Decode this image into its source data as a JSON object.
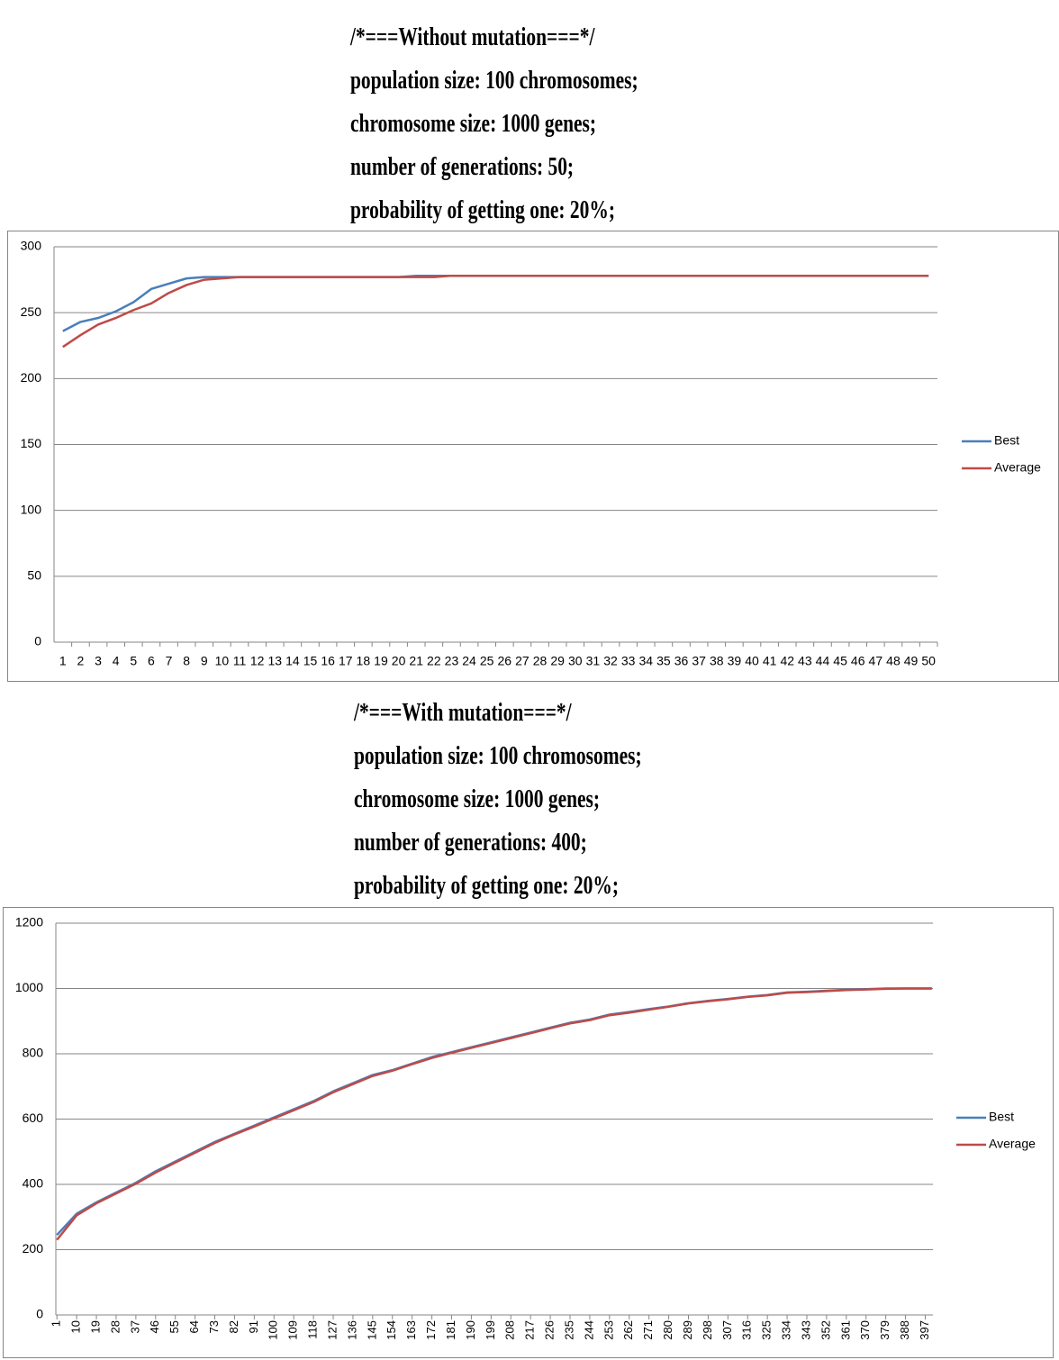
{
  "chart_data": [
    {
      "type": "line",
      "title": "/*===Without mutation===*/",
      "subtitle_lines": [
        "population size: 100 chromosomes;",
        "chromosome size: 1000 genes;",
        "number of generations: 50;",
        "probability of getting one: 20%;"
      ],
      "categories": [
        "1",
        "2",
        "3",
        "4",
        "5",
        "6",
        "7",
        "8",
        "9",
        "10",
        "11",
        "12",
        "13",
        "14",
        "15",
        "16",
        "17",
        "18",
        "19",
        "20",
        "21",
        "22",
        "23",
        "24",
        "25",
        "26",
        "27",
        "28",
        "29",
        "30",
        "31",
        "32",
        "33",
        "34",
        "35",
        "36",
        "37",
        "38",
        "39",
        "40",
        "41",
        "42",
        "43",
        "44",
        "45",
        "46",
        "47",
        "48",
        "49",
        "50"
      ],
      "series": [
        {
          "name": "Best",
          "color": "#4a7ebb",
          "values": [
            236,
            243,
            246,
            251,
            258,
            268,
            272,
            276,
            277,
            277,
            277,
            277,
            277,
            277,
            277,
            277,
            277,
            277,
            277,
            277,
            278,
            278,
            278,
            278,
            278,
            278,
            278,
            278,
            278,
            278,
            278,
            278,
            278,
            278,
            278,
            278,
            278,
            278,
            278,
            278,
            278,
            278,
            278,
            278,
            278,
            278,
            278,
            278,
            278,
            278
          ]
        },
        {
          "name": "Average",
          "color": "#be4b48",
          "values": [
            224,
            233,
            241,
            246,
            252,
            257,
            265,
            271,
            275,
            276,
            277,
            277,
            277,
            277,
            277,
            277,
            277,
            277,
            277,
            277,
            277,
            277,
            278,
            278,
            278,
            278,
            278,
            278,
            278,
            278,
            278,
            278,
            278,
            278,
            278,
            278,
            278,
            278,
            278,
            278,
            278,
            278,
            278,
            278,
            278,
            278,
            278,
            278,
            278,
            278
          ]
        }
      ],
      "ylim": [
        0,
        300
      ],
      "yticks": [
        0,
        50,
        100,
        150,
        200,
        250,
        300
      ],
      "grid": true,
      "legend": "right"
    },
    {
      "type": "line",
      "title": "/*===With mutation===*/",
      "subtitle_lines": [
        "population size: 100 chromosomes;",
        "chromosome size: 1000 genes;",
        "number of generations: 400;",
        "probability of getting one: 20%;"
      ],
      "x": [
        1,
        10,
        19,
        28,
        37,
        46,
        55,
        64,
        73,
        82,
        91,
        100,
        109,
        118,
        127,
        136,
        145,
        154,
        163,
        172,
        181,
        190,
        199,
        208,
        217,
        226,
        235,
        244,
        253,
        262,
        271,
        280,
        289,
        298,
        307,
        316,
        325,
        334,
        343,
        352,
        361,
        370,
        379,
        388,
        397,
        400
      ],
      "series": [
        {
          "name": "Best",
          "color": "#4a7ebb",
          "values": [
            245,
            310,
            345,
            375,
            405,
            440,
            470,
            500,
            530,
            555,
            580,
            605,
            630,
            655,
            685,
            710,
            735,
            750,
            770,
            790,
            805,
            820,
            835,
            850,
            865,
            880,
            895,
            905,
            920,
            928,
            937,
            945,
            955,
            962,
            968,
            975,
            980,
            988,
            990,
            993,
            996,
            998,
            1000,
            1000,
            1000,
            1000
          ]
        },
        {
          "name": "Average",
          "color": "#be4b48",
          "values": [
            230,
            305,
            342,
            372,
            402,
            436,
            467,
            497,
            527,
            553,
            577,
            602,
            627,
            652,
            682,
            707,
            732,
            748,
            768,
            787,
            803,
            818,
            833,
            848,
            863,
            878,
            893,
            903,
            918,
            926,
            935,
            944,
            954,
            961,
            967,
            974,
            979,
            987,
            989,
            992,
            995,
            997,
            999,
            1000,
            1000,
            1000
          ]
        }
      ],
      "xlim": [
        0.5,
        400.5
      ],
      "xticks": [
        1,
        10,
        19,
        28,
        37,
        46,
        55,
        64,
        73,
        82,
        91,
        100,
        109,
        118,
        127,
        136,
        145,
        154,
        163,
        172,
        181,
        190,
        199,
        208,
        217,
        226,
        235,
        244,
        253,
        262,
        271,
        280,
        289,
        298,
        307,
        316,
        325,
        334,
        343,
        352,
        361,
        370,
        379,
        388,
        397
      ],
      "ylim": [
        0,
        1200
      ],
      "yticks": [
        0,
        200,
        400,
        600,
        800,
        1000,
        1200
      ],
      "grid": true,
      "legend": "right"
    }
  ]
}
